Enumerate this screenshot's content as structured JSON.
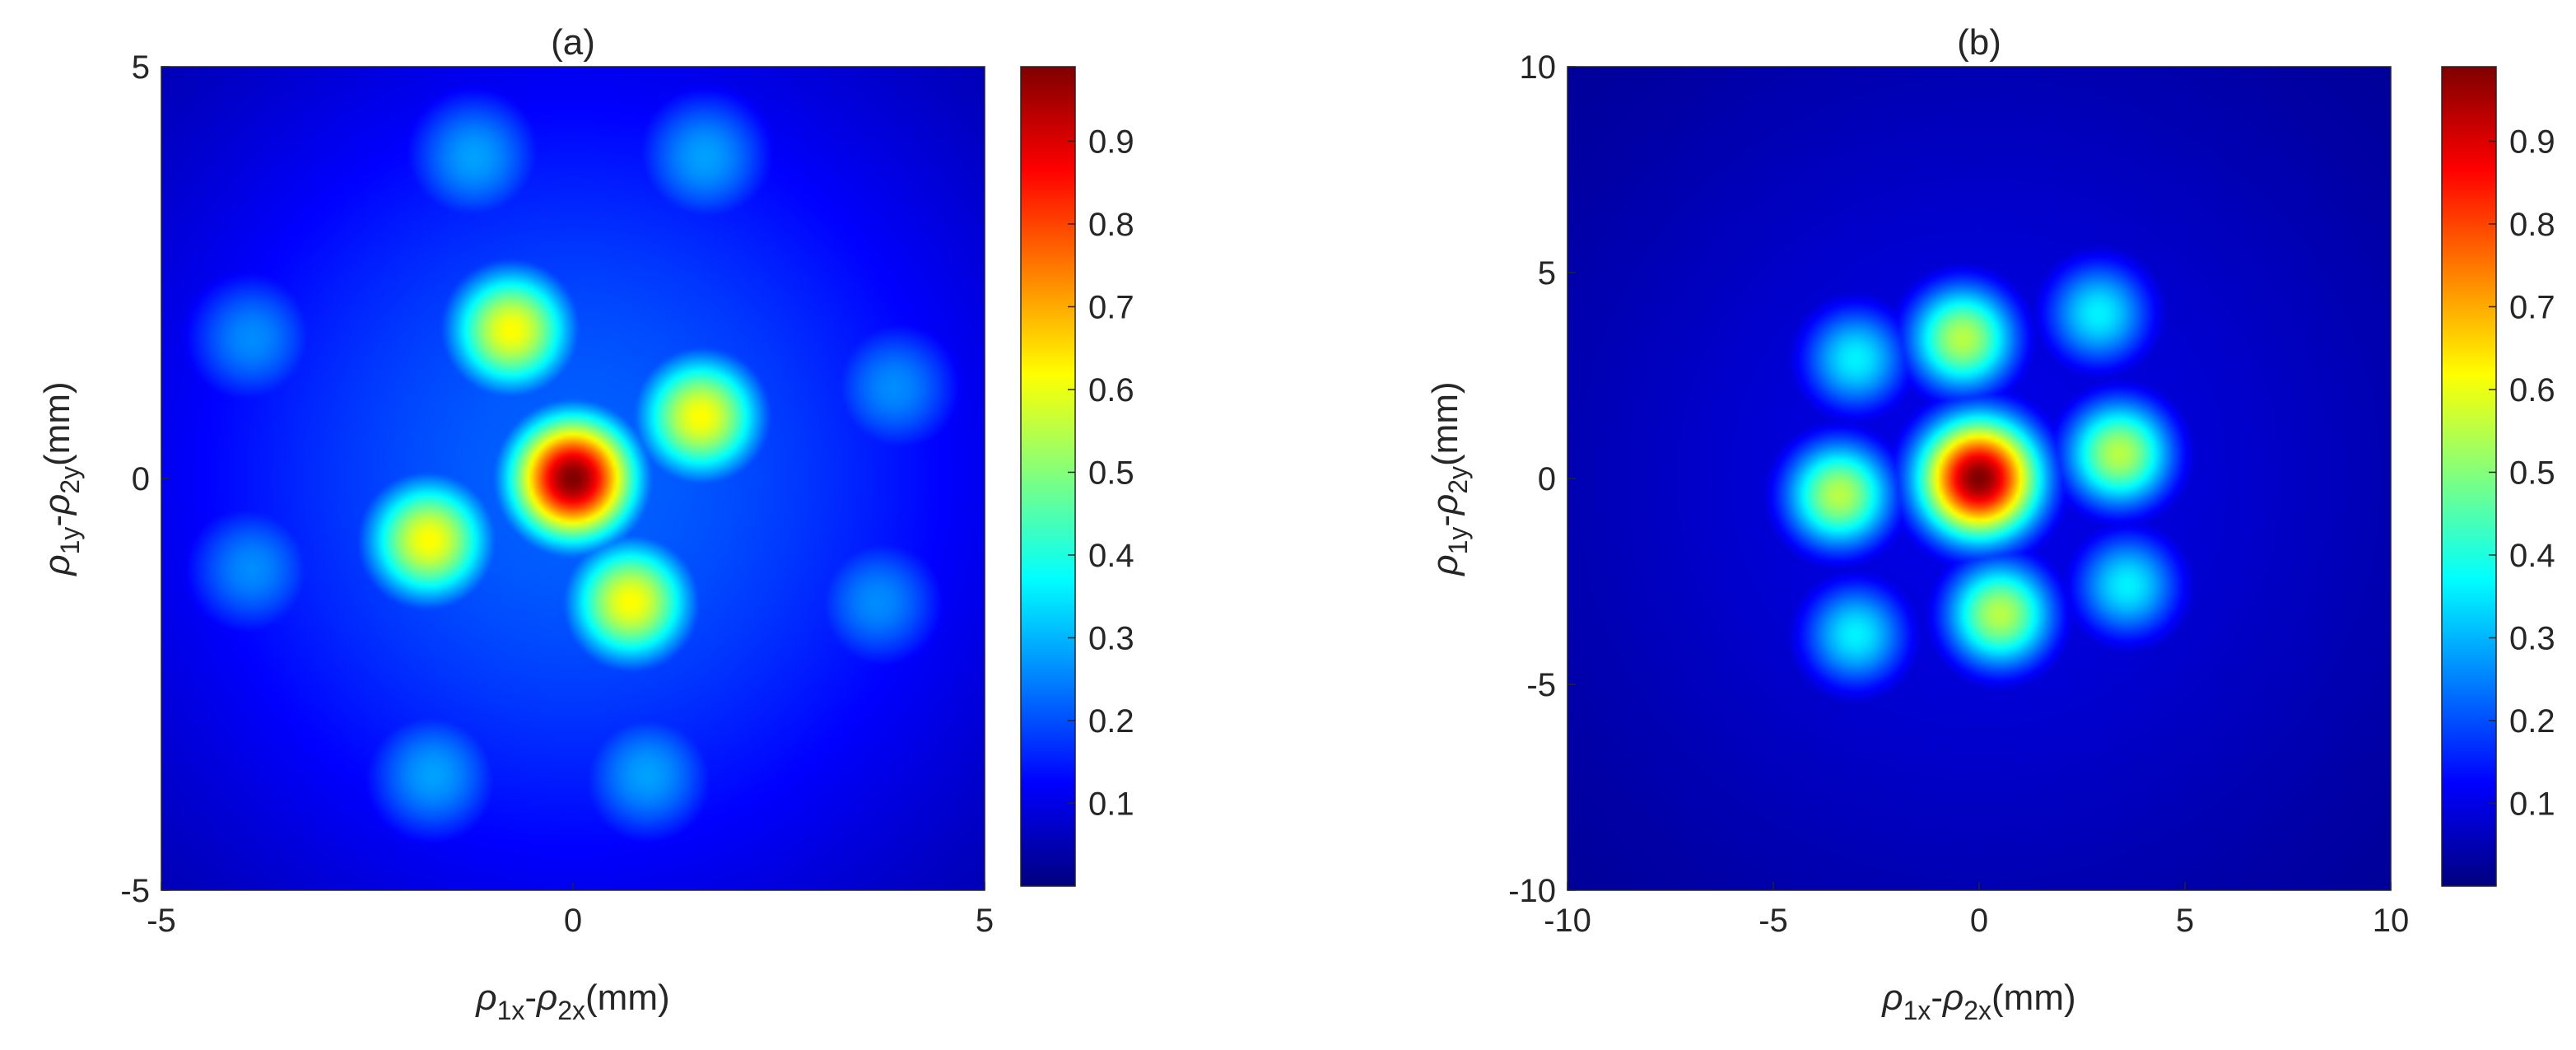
{
  "chart_data": [
    {
      "type": "heatmap",
      "title": "(a)",
      "xlabel": "ρ1x-ρ2x(mm)",
      "ylabel": "ρ1y-ρ2y(mm)",
      "xlim": [
        -5,
        5
      ],
      "ylim": [
        -5,
        5
      ],
      "xticks": [
        "-5",
        "0",
        "5"
      ],
      "yticks": [
        "-5",
        "0",
        "5"
      ],
      "colormap": "jet",
      "clim": [
        0,
        0.99
      ],
      "colorbar_ticks": [
        "0.1",
        "0.2",
        "0.3",
        "0.4",
        "0.5",
        "0.6",
        "0.7",
        "0.8",
        "0.9"
      ],
      "background_level": 0.22,
      "peaks": [
        {
          "x": 0,
          "y": 0,
          "value": 0.99,
          "sigma": 0.55
        },
        {
          "x": -0.75,
          "y": 1.8,
          "value": 0.62,
          "sigma": 0.55
        },
        {
          "x": 1.55,
          "y": 0.75,
          "value": 0.62,
          "sigma": 0.55
        },
        {
          "x": -1.75,
          "y": -0.75,
          "value": 0.62,
          "sigma": 0.55
        },
        {
          "x": 0.7,
          "y": -1.5,
          "value": 0.62,
          "sigma": 0.55
        },
        {
          "x": -1.2,
          "y": 3.9,
          "value": 0.28,
          "sigma": 0.65
        },
        {
          "x": 1.6,
          "y": 3.9,
          "value": 0.28,
          "sigma": 0.65
        },
        {
          "x": -3.9,
          "y": 1.7,
          "value": 0.26,
          "sigma": 0.65
        },
        {
          "x": 3.9,
          "y": 1.1,
          "value": 0.26,
          "sigma": 0.65
        },
        {
          "x": -3.9,
          "y": -1.1,
          "value": 0.26,
          "sigma": 0.65
        },
        {
          "x": 3.7,
          "y": -1.5,
          "value": 0.26,
          "sigma": 0.65
        },
        {
          "x": -1.7,
          "y": -3.6,
          "value": 0.28,
          "sigma": 0.65
        },
        {
          "x": 0.9,
          "y": -3.6,
          "value": 0.28,
          "sigma": 0.65
        }
      ]
    },
    {
      "type": "heatmap",
      "title": "(b)",
      "xlabel": "ρ1x-ρ2x(mm)",
      "ylabel": "ρ1y-ρ2y(mm)",
      "xlim": [
        -10,
        10
      ],
      "ylim": [
        -10,
        10
      ],
      "xticks": [
        "-10",
        "-5",
        "0",
        "5",
        "10"
      ],
      "yticks": [
        "-10",
        "-5",
        "0",
        "5",
        "10"
      ],
      "colormap": "jet",
      "clim": [
        0,
        0.99
      ],
      "colorbar_ticks": [
        "0.1",
        "0.2",
        "0.3",
        "0.4",
        "0.5",
        "0.6",
        "0.7",
        "0.8",
        "0.9"
      ],
      "background_level": 0.1,
      "peaks": [
        {
          "x": 0,
          "y": 0,
          "value": 0.99,
          "sigma": 1.05
        },
        {
          "x": -0.4,
          "y": 3.4,
          "value": 0.55,
          "sigma": 0.95
        },
        {
          "x": 3.4,
          "y": 0.6,
          "value": 0.55,
          "sigma": 0.95
        },
        {
          "x": -3.4,
          "y": -0.4,
          "value": 0.55,
          "sigma": 0.95
        },
        {
          "x": 0.5,
          "y": -3.3,
          "value": 0.55,
          "sigma": 0.95
        },
        {
          "x": -3.0,
          "y": 2.9,
          "value": 0.36,
          "sigma": 0.95
        },
        {
          "x": 2.9,
          "y": 4.0,
          "value": 0.36,
          "sigma": 0.95
        },
        {
          "x": -3.0,
          "y": -3.8,
          "value": 0.36,
          "sigma": 0.95
        },
        {
          "x": 3.6,
          "y": -2.6,
          "value": 0.36,
          "sigma": 0.95
        }
      ]
    }
  ]
}
